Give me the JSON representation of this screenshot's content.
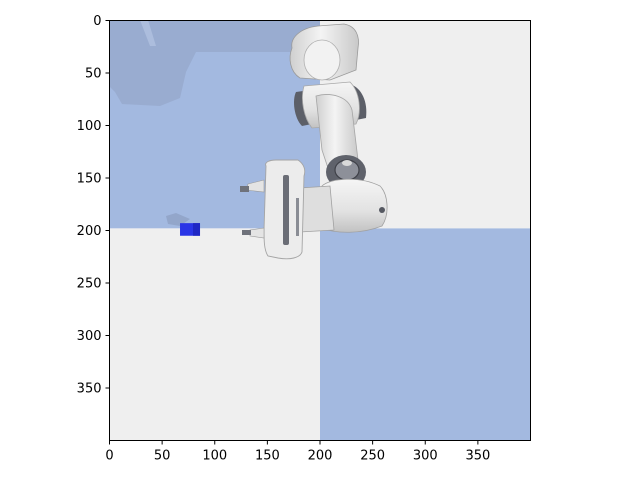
{
  "figure": {
    "kind": "image-plot",
    "scene_description_icon": "robot-arm-icon",
    "colors": {
      "floor_light": "#efefef",
      "floor_blue": "#a3b9e0",
      "floor_blue_shadow": "#9aadd0",
      "target_cube": "#2a35e6",
      "robot_body": "#e9e9e9",
      "robot_joint": "#5c5f68",
      "axis": "#000000"
    }
  },
  "chart_data": {
    "type": "heatmap",
    "xlim": [
      0,
      400
    ],
    "ylim": [
      400,
      0
    ],
    "grid": false,
    "x_ticks": [
      0,
      50,
      100,
      150,
      200,
      250,
      300,
      350
    ],
    "y_ticks": [
      0,
      50,
      100,
      150,
      200,
      250,
      300,
      350
    ],
    "x_tick_labels": [
      "0",
      "50",
      "100",
      "150",
      "200",
      "250",
      "300",
      "350"
    ],
    "y_tick_labels": [
      "0",
      "50",
      "100",
      "150",
      "200",
      "250",
      "300",
      "350"
    ],
    "checker_tiles": [
      {
        "x0": 0,
        "x1": 200,
        "y0": 0,
        "y1": 198,
        "color": "blue"
      },
      {
        "x0": 200,
        "x1": 400,
        "y0": 0,
        "y1": 198,
        "color": "light"
      },
      {
        "x0": 0,
        "x1": 200,
        "y0": 198,
        "y1": 400,
        "color": "light"
      },
      {
        "x0": 200,
        "x1": 400,
        "y0": 198,
        "y1": 400,
        "color": "blue"
      }
    ],
    "target_cube": {
      "x0": 67,
      "x1": 86,
      "y0": 193,
      "y1": 205
    }
  }
}
